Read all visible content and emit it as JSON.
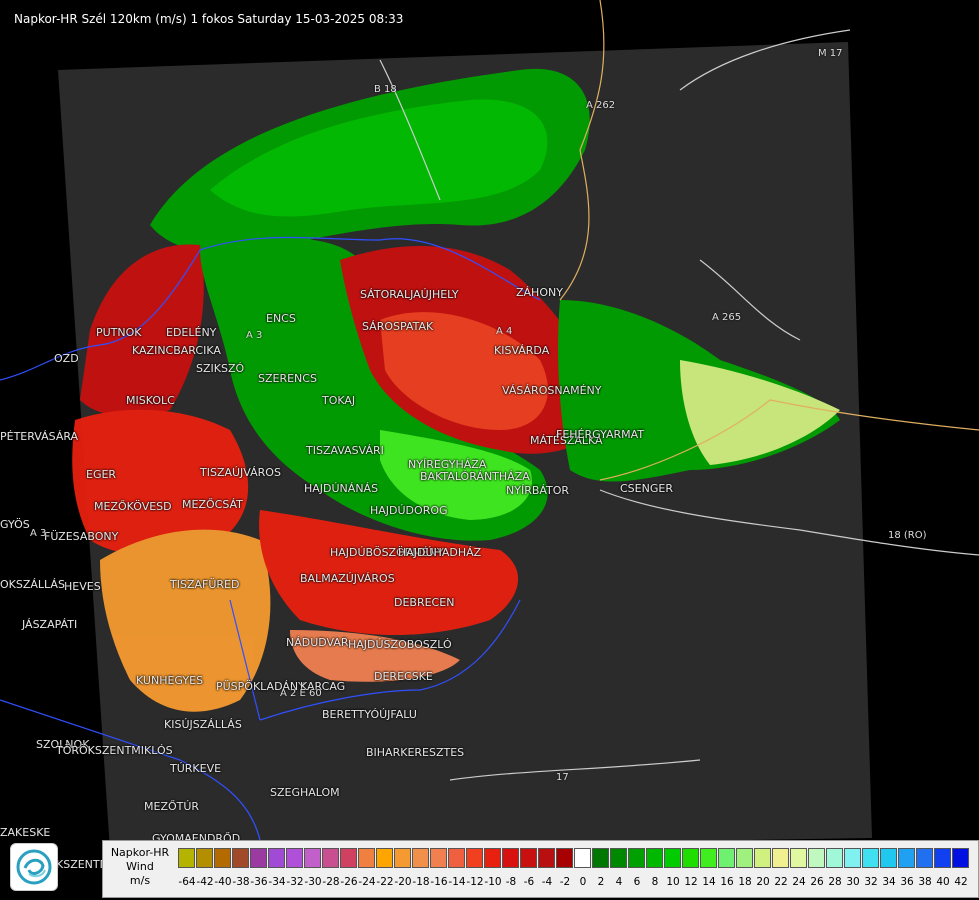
{
  "header": {
    "title": "Napkor-HR Szél 120km (m/s) 1 fokos Saturday 15-03-2025 08:33"
  },
  "legend": {
    "line1": "Napkor-HR",
    "line2": "Wind",
    "line3": "m/s",
    "ticks": [
      "-64",
      "-42",
      "-40",
      "-38",
      "-36",
      "-34",
      "-32",
      "-30",
      "-28",
      "-26",
      "-24",
      "-22",
      "-20",
      "-18",
      "-16",
      "-14",
      "-12",
      "-10",
      "-8",
      "-6",
      "-4",
      "-2",
      "0",
      "2",
      "4",
      "6",
      "8",
      "10",
      "12",
      "14",
      "16",
      "18",
      "20",
      "22",
      "24",
      "26",
      "28",
      "30",
      "32",
      "34",
      "36",
      "38",
      "40",
      "42"
    ],
    "colors": [
      "#b3b300",
      "#b38f00",
      "#b36b00",
      "#a04a2a",
      "#9b3aa0",
      "#a14ad6",
      "#b050d8",
      "#c060c8",
      "#c85090",
      "#d04060",
      "#f08040",
      "#ffa500",
      "#f59a30",
      "#f0904a",
      "#f08050",
      "#f06040",
      "#f04020",
      "#e82010",
      "#d81010",
      "#c81010",
      "#b81010",
      "#a80000",
      "#ffffff",
      "#007700",
      "#008800",
      "#00a000",
      "#00b800",
      "#00cc00",
      "#20dd00",
      "#40ee20",
      "#70f070",
      "#a0f080",
      "#d0f080",
      "#f0f090",
      "#e0f8a0",
      "#c0f8c0",
      "#a0f8d8",
      "#80f0f0",
      "#40e0f0",
      "#20c8f0",
      "#20a0f0",
      "#2070f0",
      "#1040f0",
      "#0010e0"
    ]
  },
  "places": [
    {
      "name": "SÁTORALJAÚJHELY",
      "cls": "place"
    },
    {
      "name": "PUTNOK",
      "cls": "place"
    },
    {
      "name": "EDELÉNY",
      "cls": "place"
    },
    {
      "name": "KAZINCBARCIKA",
      "cls": "place"
    },
    {
      "name": "SZIKSZÓ",
      "cls": "place"
    },
    {
      "name": "ENCS",
      "cls": "place"
    },
    {
      "name": "SÁROSPATAK",
      "cls": "place"
    },
    {
      "name": "KISVÁRDA",
      "cls": "place"
    },
    {
      "name": "SZERENCS",
      "cls": "place"
    },
    {
      "name": "TOKAJ",
      "cls": "place"
    },
    {
      "name": "VÁSÁROSNAMÉNY",
      "cls": "place"
    },
    {
      "name": "MISKOLC",
      "cls": "place"
    },
    {
      "name": "PÉTERVÁSÁRA",
      "cls": "place"
    },
    {
      "name": "MÁTÉSZALKA",
      "cls": "place"
    },
    {
      "name": "FEHÉRGYARMAT",
      "cls": "place"
    },
    {
      "name": "TISZAVASVÁRI",
      "cls": "place"
    },
    {
      "name": "TISZAÚJVÁROS",
      "cls": "place"
    },
    {
      "name": "NYÍREGYHÁZA",
      "cls": "place"
    },
    {
      "name": "EGER",
      "cls": "place"
    },
    {
      "name": "HAJDÚNÁNÁS",
      "cls": "place"
    },
    {
      "name": "BAKTALÓRÁNTHÁZA",
      "cls": "place"
    },
    {
      "name": "NYÍRBÁTOR",
      "cls": "place"
    },
    {
      "name": "CSENGER",
      "cls": "place"
    },
    {
      "name": "MEZŐKÖVESD",
      "cls": "place"
    },
    {
      "name": "MEZŐCSÁT",
      "cls": "place"
    },
    {
      "name": "HAJDÚDOROG",
      "cls": "place"
    },
    {
      "name": "GYÖS",
      "cls": "place"
    },
    {
      "name": "FÜZESABONY",
      "cls": "place"
    },
    {
      "name": "HAJDÚBÖSZÖRMÉNY",
      "cls": "place"
    },
    {
      "name": "HAJDÚHADHÁZ",
      "cls": "place"
    },
    {
      "name": "HEVES",
      "cls": "place"
    },
    {
      "name": "TISZAFÜRED",
      "cls": "place"
    },
    {
      "name": "BALMAZÚJVÁROS",
      "cls": "place"
    },
    {
      "name": "JÁSZAPÁTI",
      "cls": "place"
    },
    {
      "name": "DEBRECEN",
      "cls": "place"
    },
    {
      "name": "NÁDUDVAR",
      "cls": "place"
    },
    {
      "name": "HAJDÚSZOBOSZLÓ",
      "cls": "place"
    },
    {
      "name": "DERECSKE",
      "cls": "place"
    },
    {
      "name": "KUNHEGYES",
      "cls": "place"
    },
    {
      "name": "PÜSPÖKLADÁNY",
      "cls": "place"
    },
    {
      "name": "KARCAG",
      "cls": "place"
    },
    {
      "name": "BERETTYÓÚJFALU",
      "cls": "place"
    },
    {
      "name": "KISÚJSZÁLLÁS",
      "cls": "place"
    },
    {
      "name": "SZOLNOK",
      "cls": "place"
    },
    {
      "name": "TÖRÖKSZENTMIKLÓS",
      "cls": "place"
    },
    {
      "name": "BIHARKERESZTES",
      "cls": "place"
    },
    {
      "name": "TÚRKEVE",
      "cls": "place"
    },
    {
      "name": "SZEGHALOM",
      "cls": "place"
    },
    {
      "name": "MEZŐTÚR",
      "cls": "place"
    },
    {
      "name": "GYOMAENDRŐD",
      "cls": "place"
    },
    {
      "name": "KSZENTM",
      "cls": "place"
    },
    {
      "name": "OKSZÁLLÁS",
      "cls": "place"
    },
    {
      "name": "ZAKESKE",
      "cls": "place"
    },
    {
      "name": "OZD",
      "cls": "place"
    },
    {
      "name": "ZÁHONY",
      "cls": "place"
    }
  ],
  "roads": [
    "B 18",
    "A 262",
    "M 17",
    "A 265",
    "18 (RO)",
    "A 3",
    "A 3",
    "A 4",
    "A 2 E 60",
    "17"
  ]
}
